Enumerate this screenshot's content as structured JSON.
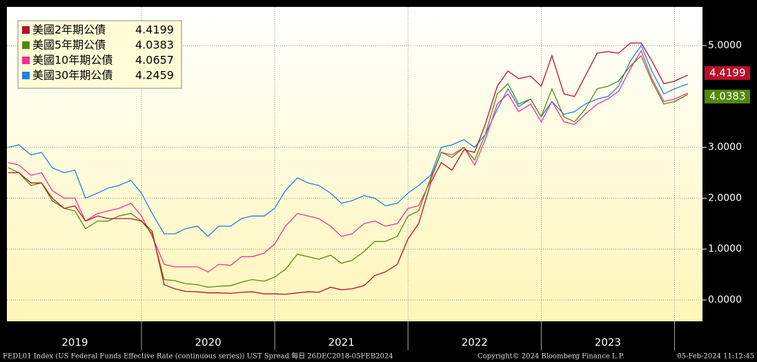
{
  "chart_data": {
    "type": "line",
    "x": [
      2019.0,
      2019.08,
      2019.17,
      2019.25,
      2019.33,
      2019.42,
      2019.5,
      2019.58,
      2019.67,
      2019.75,
      2019.83,
      2019.92,
      2020.0,
      2020.08,
      2020.17,
      2020.25,
      2020.33,
      2020.42,
      2020.5,
      2020.58,
      2020.67,
      2020.75,
      2020.83,
      2020.92,
      2021.0,
      2021.08,
      2021.17,
      2021.25,
      2021.33,
      2021.42,
      2021.5,
      2021.58,
      2021.67,
      2021.75,
      2021.83,
      2021.92,
      2022.0,
      2022.08,
      2022.17,
      2022.25,
      2022.33,
      2022.42,
      2022.5,
      2022.58,
      2022.67,
      2022.75,
      2022.83,
      2022.92,
      2023.0,
      2023.08,
      2023.17,
      2023.25,
      2023.33,
      2023.42,
      2023.5,
      2023.58,
      2023.67,
      2023.75,
      2023.83,
      2023.92,
      2024.0,
      2024.1
    ],
    "xlim": [
      2018.99,
      2024.21
    ],
    "xticks": [
      2019,
      2020,
      2021,
      2022,
      2023
    ],
    "ylim": [
      -0.42,
      5.76
    ],
    "yticks": [
      {
        "value": 0,
        "label": "0.0000"
      },
      {
        "value": 1,
        "label": "1.0000"
      },
      {
        "value": 2,
        "label": "2.0000"
      },
      {
        "value": 3,
        "label": "3.0000"
      },
      {
        "value": 5,
        "label": "5.0000"
      }
    ],
    "grid": true,
    "legend": "upper left",
    "series": [
      {
        "name": "美國2年期公債",
        "color": "#b8102a",
        "values": [
          2.5,
          2.5,
          2.3,
          2.3,
          2.0,
          1.8,
          1.85,
          1.55,
          1.65,
          1.6,
          1.6,
          1.6,
          1.55,
          1.35,
          0.3,
          0.22,
          0.17,
          0.16,
          0.14,
          0.14,
          0.13,
          0.15,
          0.16,
          0.12,
          0.12,
          0.11,
          0.14,
          0.16,
          0.15,
          0.25,
          0.2,
          0.22,
          0.28,
          0.48,
          0.55,
          0.7,
          1.2,
          1.5,
          2.3,
          2.7,
          2.55,
          2.95,
          2.9,
          3.45,
          4.2,
          4.5,
          4.35,
          4.4,
          4.2,
          4.8,
          4.05,
          4.0,
          4.4,
          4.85,
          4.88,
          4.85,
          5.05,
          5.05,
          4.7,
          4.25,
          4.3,
          4.4199
        ]
      },
      {
        "name": "美國5年期公債",
        "color": "#4f8a0b",
        "values": [
          2.6,
          2.5,
          2.25,
          2.3,
          1.95,
          1.8,
          1.75,
          1.4,
          1.55,
          1.55,
          1.65,
          1.7,
          1.55,
          1.3,
          0.4,
          0.38,
          0.32,
          0.3,
          0.25,
          0.27,
          0.28,
          0.35,
          0.4,
          0.37,
          0.45,
          0.6,
          0.9,
          0.85,
          0.8,
          0.88,
          0.72,
          0.78,
          0.95,
          1.15,
          1.15,
          1.25,
          1.65,
          1.75,
          2.4,
          2.9,
          2.8,
          3.0,
          2.75,
          3.25,
          4.05,
          4.25,
          3.85,
          3.95,
          3.6,
          4.15,
          3.6,
          3.5,
          3.75,
          4.15,
          4.2,
          4.3,
          4.6,
          4.8,
          4.3,
          3.85,
          3.9,
          4.0383
        ]
      },
      {
        "name": "美國10年期公債",
        "color": "#ff2d93",
        "values": [
          2.7,
          2.65,
          2.45,
          2.5,
          2.15,
          2.0,
          2.0,
          1.55,
          1.7,
          1.75,
          1.8,
          1.9,
          1.65,
          1.25,
          0.7,
          0.65,
          0.65,
          0.65,
          0.55,
          0.7,
          0.68,
          0.85,
          0.85,
          0.92,
          1.1,
          1.45,
          1.7,
          1.65,
          1.6,
          1.45,
          1.25,
          1.3,
          1.5,
          1.55,
          1.45,
          1.5,
          1.8,
          1.85,
          2.35,
          2.9,
          2.85,
          3.0,
          2.65,
          3.15,
          3.85,
          4.05,
          3.7,
          3.85,
          3.5,
          3.9,
          3.5,
          3.45,
          3.65,
          3.85,
          3.95,
          4.1,
          4.55,
          4.9,
          4.35,
          3.9,
          3.95,
          4.0657
        ]
      },
      {
        "name": "美國30年期公債",
        "color": "#1f7fe6",
        "values": [
          3.0,
          3.05,
          2.85,
          2.9,
          2.6,
          2.5,
          2.55,
          2.0,
          2.1,
          2.2,
          2.25,
          2.35,
          2.1,
          1.7,
          1.3,
          1.3,
          1.4,
          1.45,
          1.25,
          1.45,
          1.45,
          1.6,
          1.65,
          1.65,
          1.8,
          2.15,
          2.4,
          2.3,
          2.25,
          2.1,
          1.9,
          1.95,
          2.05,
          2.0,
          1.85,
          1.9,
          2.1,
          2.25,
          2.45,
          3.0,
          3.05,
          3.15,
          3.0,
          3.25,
          3.75,
          4.15,
          3.8,
          3.95,
          3.6,
          3.9,
          3.65,
          3.7,
          3.85,
          3.95,
          4.0,
          4.2,
          4.7,
          5.0,
          4.5,
          4.05,
          4.15,
          4.2459
        ]
      }
    ]
  },
  "footer": {
    "source": "FEDL01 Index (US Federal Funds Effective Rate (continuous series)) UST Spread  每日 26DEC2018-05FEB2024",
    "copyright": "Copyright© 2024 Bloomberg Finance L.P.",
    "timestamp": "05-Feb-2024 11:12:45"
  }
}
